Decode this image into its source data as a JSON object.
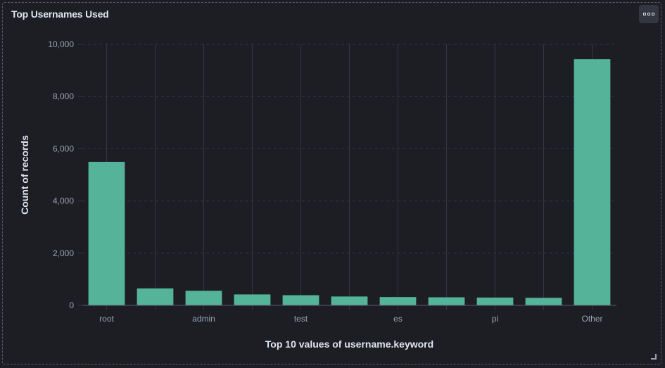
{
  "panel": {
    "title": "Top Usernames Used",
    "options_icon": "ellipsis-icon",
    "resize_icon": "resize-corner-icon"
  },
  "colors": {
    "bar": "#54b399",
    "background": "#1d1e24",
    "grid": "#343741",
    "text": "#dfe5ef",
    "tick_text": "#98a2b3"
  },
  "chart_data": {
    "type": "bar",
    "title": "Top Usernames Used",
    "xlabel": "Top 10 values of username.keyword",
    "ylabel": "Count of records",
    "ylim": [
      0,
      10000
    ],
    "yticks": [
      "0",
      "2,000",
      "4,000",
      "6,000",
      "8,000",
      "10,000"
    ],
    "categories": [
      "root",
      "",
      "admin",
      "",
      "test",
      "",
      "es",
      "",
      "pi",
      "",
      "Other"
    ],
    "values": [
      5500,
      650,
      560,
      420,
      390,
      340,
      320,
      310,
      300,
      290,
      9430
    ],
    "grid": true,
    "legend": "none"
  }
}
